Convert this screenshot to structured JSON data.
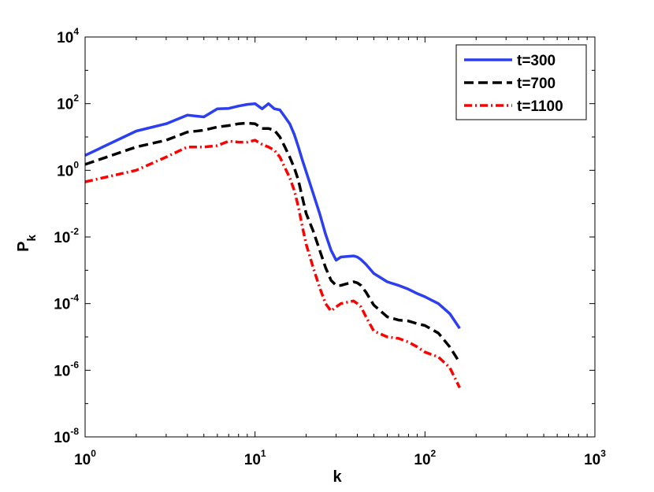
{
  "chart_data": {
    "type": "line",
    "title": "",
    "xlabel": "k",
    "ylabel": "P",
    "ylabel_subscript": "k",
    "xscale": "log",
    "yscale": "log",
    "xlim": [
      1,
      1000
    ],
    "ylim": [
      1e-08,
      10000
    ],
    "x_ticks": [
      {
        "value": 1,
        "base": "10",
        "exp": "0"
      },
      {
        "value": 10,
        "base": "10",
        "exp": "1"
      },
      {
        "value": 100,
        "base": "10",
        "exp": "2"
      },
      {
        "value": 1000,
        "base": "10",
        "exp": "3"
      }
    ],
    "y_ticks": [
      {
        "value": 1e-08,
        "base": "10",
        "exp": "-8"
      },
      {
        "value": 1e-06,
        "base": "10",
        "exp": "-6"
      },
      {
        "value": 0.0001,
        "base": "10",
        "exp": "-4"
      },
      {
        "value": 0.01,
        "base": "10",
        "exp": "-2"
      },
      {
        "value": 1,
        "base": "10",
        "exp": "0"
      },
      {
        "value": 100,
        "base": "10",
        "exp": "2"
      },
      {
        "value": 10000,
        "base": "10",
        "exp": "4"
      }
    ],
    "legend_position": "top-right",
    "series": [
      {
        "name": "t=300",
        "color": "#2b3ff0",
        "style": "solid",
        "x": [
          1,
          2,
          3,
          4,
          5,
          6,
          7,
          8,
          9,
          10,
          11,
          12,
          13,
          14,
          15,
          16,
          17,
          18,
          19,
          20,
          22,
          24,
          26,
          28,
          30,
          32,
          35,
          38,
          40,
          42,
          45,
          50,
          60,
          70,
          80,
          90,
          100,
          120,
          140,
          160
        ],
        "y": [
          2.8,
          15,
          25,
          45,
          40,
          70,
          72,
          85,
          95,
          100,
          70,
          100,
          70,
          65,
          40,
          25,
          12,
          5,
          2,
          0.9,
          0.2,
          0.05,
          0.012,
          0.004,
          0.002,
          0.0025,
          0.0026,
          0.0027,
          0.0025,
          0.0021,
          0.0015,
          0.0008,
          0.00045,
          0.00035,
          0.00027,
          0.0002,
          0.00016,
          0.0001,
          5e-05,
          1.8e-05
        ]
      },
      {
        "name": "t=700",
        "color": "#000000",
        "style": "dashed",
        "x": [
          1,
          2,
          3,
          4,
          5,
          6,
          7,
          8,
          9,
          10,
          11,
          12,
          13,
          14,
          15,
          16,
          17,
          18,
          19,
          20,
          22,
          24,
          26,
          28,
          30,
          32,
          35,
          38,
          40,
          42,
          45,
          50,
          60,
          70,
          80,
          90,
          100,
          120,
          140,
          160
        ],
        "y": [
          1.5,
          5,
          8,
          14,
          16,
          20,
          22,
          25,
          26,
          25,
          18,
          18,
          16,
          10,
          5,
          2.5,
          1.2,
          0.5,
          0.15,
          0.05,
          0.015,
          0.004,
          0.0012,
          0.0005,
          0.00035,
          0.00035,
          0.0004,
          0.00045,
          0.00042,
          0.00035,
          0.00022,
          9e-05,
          4e-05,
          3.2e-05,
          3e-05,
          2.5e-05,
          2.2e-05,
          1.3e-05,
          5e-06,
          1.7e-06
        ]
      },
      {
        "name": "t=1100",
        "color": "#ff0000",
        "style": "dashdot",
        "x": [
          1,
          2,
          3,
          4,
          5,
          6,
          7,
          8,
          9,
          10,
          11,
          12,
          13,
          14,
          15,
          16,
          17,
          18,
          19,
          20,
          22,
          24,
          26,
          28,
          30,
          32,
          35,
          38,
          40,
          42,
          45,
          50,
          60,
          70,
          80,
          90,
          100,
          120,
          140,
          160
        ],
        "y": [
          0.45,
          1,
          2.5,
          5,
          5,
          5.5,
          7.5,
          7,
          7,
          8,
          6,
          5,
          4,
          2.5,
          1.2,
          0.6,
          0.25,
          0.08,
          0.02,
          0.006,
          0.0012,
          0.0003,
          0.0001,
          6e-05,
          8e-05,
          0.0001,
          0.00011,
          0.00012,
          0.0001,
          8e-05,
          4e-05,
          1.5e-05,
          1e-05,
          9e-06,
          7e-06,
          5e-06,
          3.5e-06,
          2.5e-06,
          1.2e-06,
          3e-07
        ]
      }
    ]
  }
}
